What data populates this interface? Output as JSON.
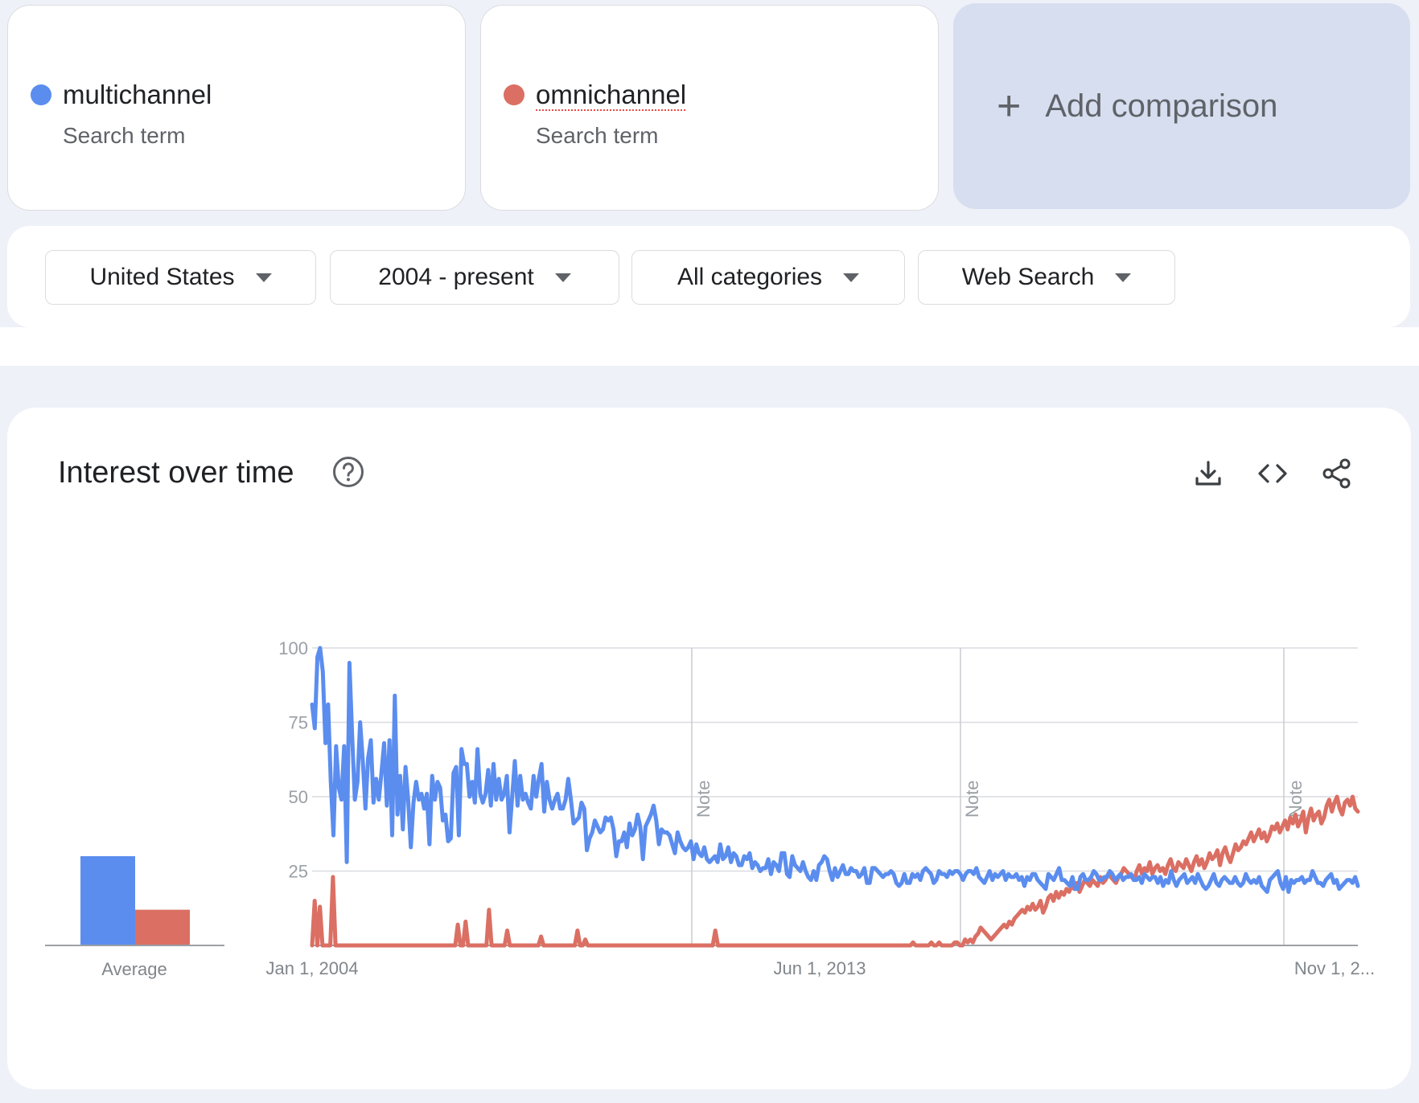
{
  "terms": [
    {
      "name": "multichannel",
      "type": "Search term",
      "color": "#5b8def"
    },
    {
      "name": "omnichannel",
      "type": "Search term",
      "color": "#db6f63"
    }
  ],
  "add_comparison": {
    "label": "Add comparison",
    "icon": "plus-icon"
  },
  "filters": [
    {
      "label": "United States"
    },
    {
      "label": "2004 - present"
    },
    {
      "label": "All categories"
    },
    {
      "label": "Web Search"
    }
  ],
  "chart": {
    "title": "Interest over time",
    "icons": [
      "help-icon",
      "download-icon",
      "embed-code-icon",
      "share-icon"
    ],
    "avg_label": "Average"
  },
  "chart_data": {
    "type": "line",
    "title": "Interest over time",
    "xlabel": "",
    "ylabel": "",
    "ylim": [
      0,
      100
    ],
    "y_ticks": [
      25,
      50,
      75,
      100
    ],
    "x_tick_labels": [
      "Jan 1, 2004",
      "Jun 1, 2013",
      "Nov 1, 2..."
    ],
    "grid": true,
    "note_labels": [
      "Note",
      "Note",
      "Note"
    ],
    "averages": {
      "multichannel": 30,
      "omnichannel": 12
    },
    "series": [
      {
        "name": "multichannel",
        "color": "#5b8def",
        "values": [
          81,
          73,
          97,
          100,
          92,
          68,
          81,
          55,
          37,
          67,
          53,
          49,
          67,
          28,
          95,
          71,
          49,
          55,
          75,
          62,
          46,
          63,
          69,
          48,
          56,
          49,
          58,
          68,
          47,
          69,
          37,
          84,
          44,
          57,
          39,
          60,
          49,
          33,
          48,
          55,
          49,
          51,
          46,
          51,
          34,
          57,
          49,
          55,
          53,
          42,
          44,
          35,
          36,
          58,
          60,
          37,
          66,
          61,
          61,
          50,
          55,
          48,
          66,
          51,
          48,
          51,
          59,
          47,
          61,
          49,
          56,
          49,
          51,
          57,
          38,
          50,
          62,
          47,
          57,
          49,
          51,
          48,
          46,
          57,
          50,
          56,
          61,
          45,
          55,
          49,
          46,
          49,
          51,
          46,
          46,
          49,
          56,
          49,
          41,
          42,
          43,
          48,
          46,
          32,
          36,
          38,
          42,
          40,
          38,
          39,
          43,
          42,
          43,
          39,
          30,
          35,
          35,
          38,
          33,
          41,
          37,
          39,
          44,
          40,
          29,
          40,
          42,
          44,
          47,
          42,
          34,
          39,
          38,
          38,
          37,
          34,
          31,
          38,
          35,
          33,
          32,
          33,
          35,
          29,
          34,
          31,
          30,
          33,
          29,
          28,
          29,
          30,
          28,
          34,
          29,
          30,
          33,
          28,
          31,
          30,
          27,
          27,
          30,
          29,
          31,
          26,
          28,
          27,
          25,
          26,
          26,
          29,
          24,
          28,
          27,
          25,
          31,
          31,
          24,
          23,
          30,
          27,
          26,
          25,
          28,
          25,
          23,
          22,
          25,
          22,
          27,
          28,
          30,
          29,
          25,
          22,
          26,
          23,
          25,
          27,
          24,
          24,
          26,
          25,
          25,
          23,
          24,
          26,
          21,
          21,
          26,
          26,
          25,
          24,
          23,
          24,
          24,
          25,
          24,
          21,
          20,
          21,
          24,
          21,
          21,
          24,
          23,
          24,
          22,
          25,
          26,
          25,
          24,
          21,
          22,
          25,
          24,
          24,
          23,
          25,
          24,
          25,
          25,
          24,
          22,
          24,
          25,
          25,
          24,
          26,
          23,
          22,
          21,
          23,
          25,
          22,
          24,
          23,
          24,
          25,
          22,
          24,
          23,
          23,
          24,
          22,
          23,
          20,
          23,
          22,
          24,
          24,
          22,
          21,
          20,
          19,
          24,
          23,
          22,
          24,
          26,
          22,
          22,
          21,
          20,
          23,
          19,
          19,
          23,
          24,
          22,
          22,
          23,
          25,
          24,
          22,
          22,
          23,
          23,
          25,
          24,
          22,
          23,
          24,
          22,
          23,
          23,
          24,
          22,
          22,
          23,
          21,
          24,
          23,
          22,
          23,
          23,
          21,
          23,
          20,
          22,
          21,
          25,
          22,
          20,
          22,
          23,
          24,
          21,
          22,
          23,
          21,
          24,
          22,
          20,
          19,
          20,
          22,
          24,
          21,
          20,
          22,
          23,
          22,
          21,
          21,
          23,
          21,
          20,
          21,
          24,
          22,
          21,
          22,
          21,
          23,
          20,
          19,
          18,
          22,
          23,
          24,
          25,
          21,
          19,
          23,
          18,
          22,
          21,
          22,
          22,
          23,
          21,
          22,
          22,
          25,
          23,
          21,
          21,
          20,
          22,
          23,
          24,
          21,
          22,
          19,
          20,
          21,
          22,
          22,
          21,
          23,
          20
        ]
      },
      {
        "name": "omnichannel",
        "color": "#db6f63",
        "values": [
          0,
          15,
          0,
          13,
          0,
          0,
          0,
          0,
          23,
          0,
          0,
          0,
          0,
          0,
          0,
          0,
          0,
          0,
          0,
          0,
          0,
          0,
          0,
          0,
          0,
          0,
          0,
          0,
          0,
          0,
          0,
          0,
          0,
          0,
          0,
          0,
          0,
          0,
          0,
          0,
          0,
          0,
          0,
          0,
          0,
          0,
          0,
          0,
          0,
          0,
          0,
          0,
          0,
          0,
          0,
          0,
          7,
          0,
          0,
          8,
          0,
          0,
          0,
          0,
          0,
          0,
          0,
          0,
          12,
          0,
          0,
          0,
          0,
          0,
          0,
          5,
          0,
          0,
          0,
          0,
          0,
          0,
          0,
          0,
          0,
          0,
          0,
          0,
          3,
          0,
          0,
          0,
          0,
          0,
          0,
          0,
          0,
          0,
          0,
          0,
          0,
          0,
          5,
          0,
          0,
          2,
          0,
          0,
          0,
          0,
          0,
          0,
          0,
          0,
          0,
          0,
          0,
          0,
          0,
          0,
          0,
          0,
          0,
          0,
          0,
          0,
          0,
          0,
          0,
          0,
          0,
          0,
          0,
          0,
          0,
          0,
          0,
          0,
          0,
          0,
          0,
          0,
          0,
          0,
          0,
          0,
          0,
          0,
          0,
          0,
          0,
          0,
          0,
          0,
          0,
          5,
          0,
          0,
          0,
          0,
          0,
          0,
          0,
          0,
          0,
          0,
          0,
          0,
          0,
          0,
          0,
          0,
          0,
          0,
          0,
          0,
          0,
          0,
          0,
          0,
          0,
          0,
          0,
          0,
          0,
          0,
          0,
          0,
          0,
          0,
          0,
          0,
          0,
          0,
          0,
          0,
          0,
          0,
          0,
          0,
          0,
          0,
          0,
          0,
          0,
          0,
          0,
          0,
          0,
          0,
          0,
          0,
          0,
          0,
          0,
          0,
          0,
          0,
          0,
          0,
          0,
          0,
          0,
          0,
          0,
          0,
          0,
          0,
          0,
          0,
          0,
          1,
          0,
          0,
          0,
          0,
          0,
          0,
          1,
          0,
          0,
          1,
          0,
          0,
          0,
          0,
          0,
          1,
          1,
          0,
          0,
          2,
          1,
          2,
          1,
          3,
          4,
          6,
          5,
          4,
          3,
          2,
          3,
          4,
          5,
          6,
          7,
          6,
          8,
          7,
          9,
          10,
          11,
          12,
          11,
          13,
          12,
          14,
          12,
          13,
          15,
          11,
          13,
          16,
          17,
          15,
          18,
          16,
          18,
          17,
          19,
          18,
          20,
          19,
          21,
          18,
          20,
          22,
          21,
          20,
          22,
          21,
          20,
          23,
          21,
          22,
          24,
          23,
          22,
          21,
          23,
          24,
          26,
          25,
          24,
          23,
          22,
          25,
          27,
          24,
          26,
          25,
          28,
          24,
          26,
          27,
          25,
          26,
          24,
          27,
          29,
          26,
          25,
          28,
          27,
          26,
          29,
          27,
          25,
          28,
          30,
          27,
          29,
          26,
          28,
          31,
          29,
          30,
          32,
          27,
          31,
          33,
          30,
          28,
          31,
          34,
          32,
          33,
          35,
          34,
          36,
          38,
          35,
          37,
          39,
          36,
          38,
          35,
          37,
          40,
          39,
          41,
          38,
          40,
          42,
          39,
          43,
          41,
          44,
          40,
          42,
          45,
          38,
          43,
          46,
          42,
          44,
          45,
          41,
          43,
          47,
          49,
          45,
          48,
          50,
          46,
          44,
          48,
          49,
          47,
          50,
          46,
          45
        ]
      }
    ]
  }
}
